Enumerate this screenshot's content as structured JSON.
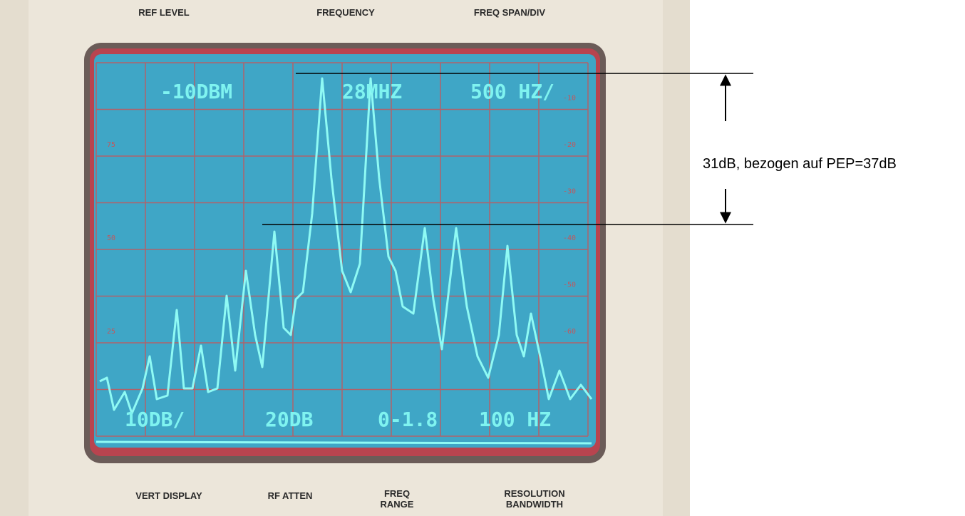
{
  "top_labels": [
    "REF LEVEL",
    "FREQUENCY",
    "FREQ SPAN/DIV"
  ],
  "screen": {
    "top": [
      "-10DBM",
      "28MHZ",
      "500 HZ/"
    ],
    "bottom": [
      "10DB/",
      "20DB",
      "0-1.8",
      "100 HZ"
    ],
    "right_scale": [
      "-10",
      "-20",
      "-30",
      "-40",
      "-50",
      "-60"
    ],
    "left_scale": [
      "75",
      "50",
      "25"
    ]
  },
  "bottom_labels": [
    [
      "VERT DISPLAY"
    ],
    [
      "RF ATTEN"
    ],
    [
      "FREQ",
      "RANGE"
    ],
    [
      "RESOLUTION",
      "BANDWIDTH"
    ]
  ],
  "annotation": "31dB, bezogen auf PEP=37dB"
}
